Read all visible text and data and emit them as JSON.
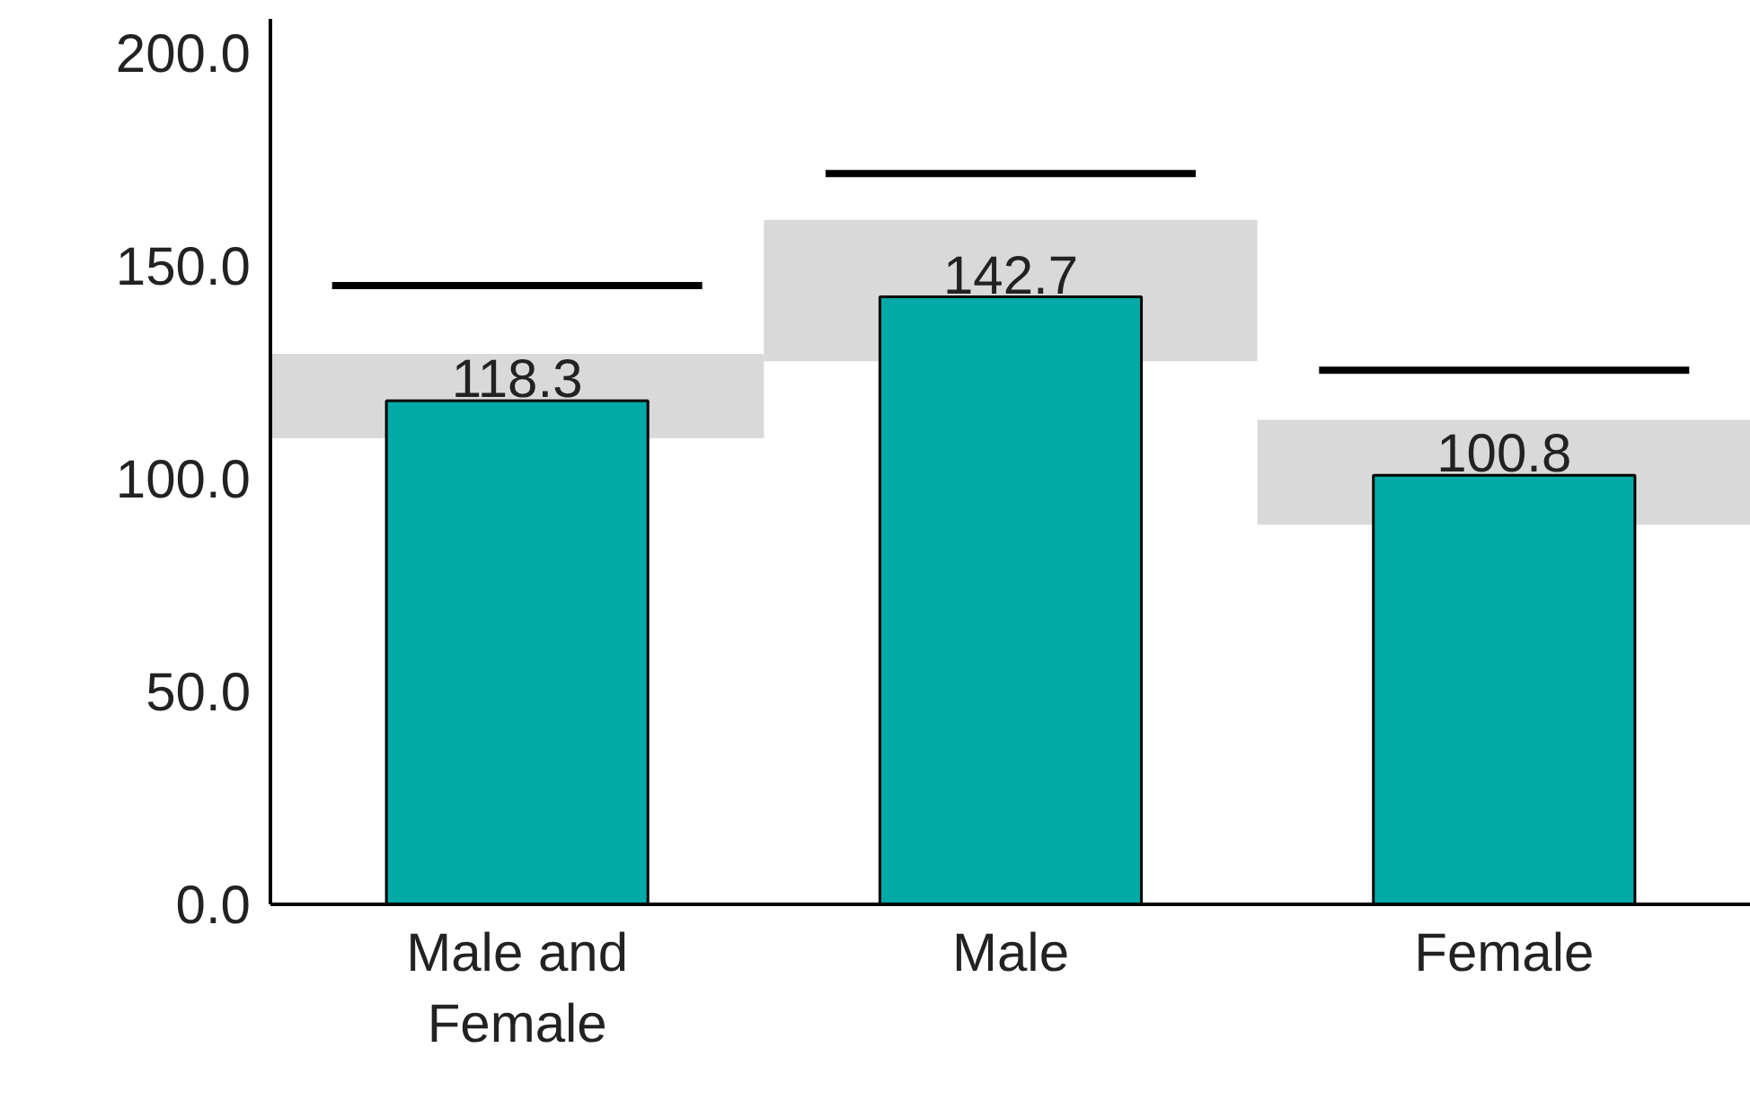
{
  "chart_data": {
    "type": "bar",
    "categories": [
      "Male and Female",
      "Male",
      "Female"
    ],
    "series": [
      {
        "color": "#d9d9d9",
        "base": [
          109.5,
          127.6,
          89.2
        ],
        "values": [
          19.8,
          33.2,
          24.6
        ]
      },
      {
        "color": "#00aaa6",
        "values": [
          118.3,
          142.7,
          100.8
        ],
        "data_labels": true
      },
      {
        "color": "#000000",
        "base": [
          144.5,
          170.8,
          124.6
        ],
        "values": [
          1.7,
          1.7,
          1.7
        ]
      }
    ],
    "ylim": [
      0,
      208
    ],
    "yticks": [
      {
        "value": 0,
        "label": "0.0"
      },
      {
        "value": 50,
        "label": "50.0"
      },
      {
        "value": 100,
        "label": "100.0"
      },
      {
        "value": 150,
        "label": "150.0"
      },
      {
        "value": 200,
        "label": "200.0"
      }
    ],
    "grid": false
  }
}
